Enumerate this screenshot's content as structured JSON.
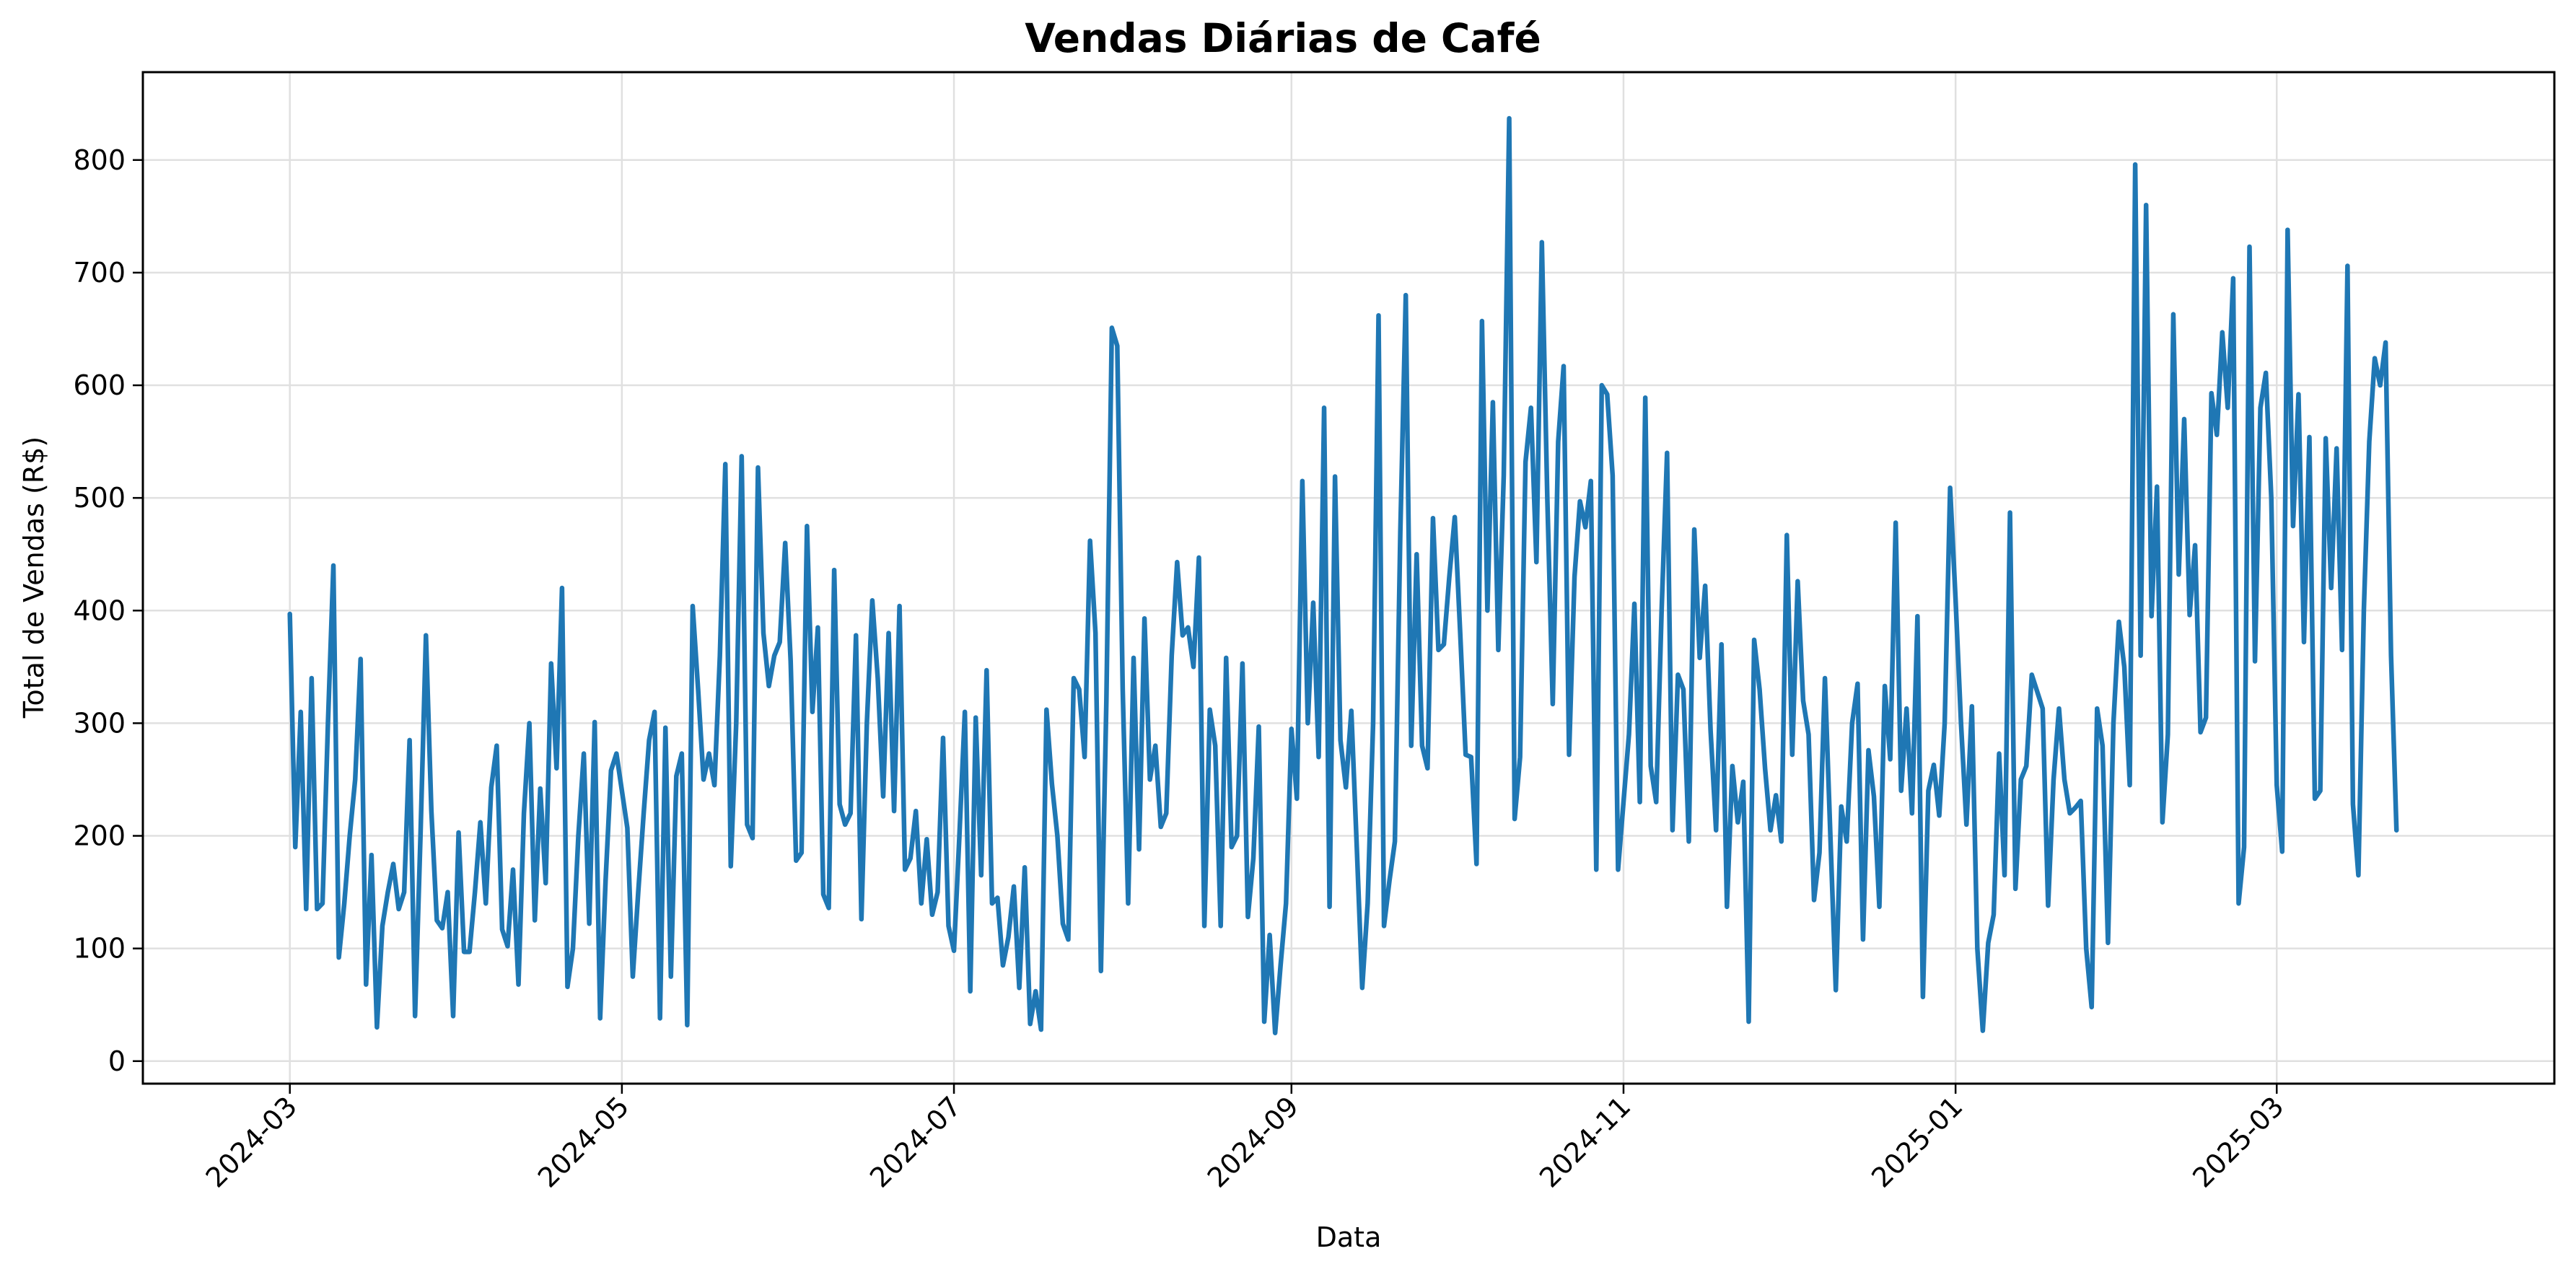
{
  "chart_data": {
    "type": "line",
    "title": "Vendas Diárias de Café",
    "xlabel": "Data",
    "ylabel": "Total de Vendas (R$)",
    "x_start": "2024-03-01",
    "x_end": "2025-03-24",
    "xlim": [
      "2024-02-03",
      "2025-04-21"
    ],
    "ylim": [
      -20,
      878
    ],
    "grid": true,
    "line_color": "#1f77b4",
    "x_ticks": [
      {
        "date": "2024-03-01",
        "label": "2024-03"
      },
      {
        "date": "2024-05-01",
        "label": "2024-05"
      },
      {
        "date": "2024-07-01",
        "label": "2024-07"
      },
      {
        "date": "2024-09-01",
        "label": "2024-09"
      },
      {
        "date": "2024-11-01",
        "label": "2024-11"
      },
      {
        "date": "2025-01-01",
        "label": "2025-01"
      },
      {
        "date": "2025-03-01",
        "label": "2025-03"
      }
    ],
    "y_ticks": [
      0,
      100,
      200,
      300,
      400,
      500,
      600,
      700,
      800
    ],
    "series": [
      {
        "values": [
          397,
          190,
          310,
          135,
          340,
          135,
          140,
          300,
          440,
          92,
          140,
          200,
          250,
          357,
          68,
          183,
          30,
          120,
          150,
          175,
          135,
          150,
          285,
          40,
          200,
          378,
          222,
          125,
          118,
          150,
          40,
          203,
          97,
          97,
          150,
          212,
          140,
          243,
          280,
          117,
          102,
          170,
          68,
          220,
          300,
          125,
          242,
          158,
          353,
          260,
          420,
          66,
          100,
          200,
          273,
          122,
          301,
          38,
          160,
          258,
          273,
          240,
          207,
          75,
          150,
          220,
          285,
          310,
          38,
          296,
          75,
          253,
          273,
          32,
          404,
          330,
          250,
          273,
          245,
          360,
          530,
          173,
          300,
          537,
          210,
          198,
          527,
          380,
          333,
          360,
          372,
          460,
          355,
          178,
          185,
          475,
          310,
          385,
          148,
          136,
          436,
          228,
          210,
          220,
          378,
          126,
          300,
          409,
          340,
          235,
          380,
          222,
          404,
          170,
          180,
          222,
          140,
          197,
          130,
          150,
          287,
          120,
          98,
          200,
          310,
          62,
          305,
          165,
          347,
          140,
          145,
          85,
          110,
          155,
          65,
          172,
          33,
          62,
          28,
          312,
          246,
          200,
          122,
          108,
          340,
          330,
          270,
          462,
          380,
          80,
          320,
          651,
          635,
          330,
          140,
          358,
          188,
          393,
          250,
          280,
          208,
          220,
          360,
          443,
          378,
          385,
          350,
          447,
          120,
          312,
          280,
          120,
          358,
          190,
          200,
          353,
          128,
          180,
          297,
          35,
          112,
          25,
          85,
          140,
          295,
          233,
          515,
          300,
          407,
          270,
          580,
          137,
          519,
          285,
          243,
          311,
          190,
          65,
          140,
          300,
          662,
          120,
          160,
          195,
          470,
          680,
          280,
          450,
          280,
          260,
          482,
          365,
          370,
          430,
          483,
          380,
          272,
          270,
          175,
          657,
          400,
          585,
          365,
          520,
          837,
          215,
          270,
          532,
          580,
          443,
          727,
          500,
          317,
          550,
          617,
          272,
          430,
          497,
          474,
          515,
          170,
          600,
          592,
          520,
          170,
          230,
          290,
          406,
          230,
          589,
          262,
          230,
          400,
          540,
          205,
          343,
          330,
          195,
          472,
          358,
          422,
          293,
          205,
          370,
          137,
          262,
          212,
          248,
          35,
          374,
          330,
          260,
          205,
          236,
          195,
          467,
          272,
          426,
          320,
          290,
          143,
          185,
          340,
          200,
          63,
          226,
          195,
          300,
          335,
          108,
          276,
          235,
          137,
          333,
          268,
          478,
          240,
          313,
          220,
          395,
          57,
          240,
          263,
          218,
          300,
          509,
          410,
          300,
          210,
          315,
          100,
          27,
          105,
          130,
          273,
          165,
          487,
          153,
          250,
          262,
          343,
          328,
          313,
          138,
          250,
          313,
          250,
          220,
          225,
          231,
          100,
          48,
          313,
          280,
          105,
          300,
          390,
          350,
          245,
          796,
          360,
          760,
          395,
          510,
          212,
          290,
          663,
          432,
          570,
          396,
          458,
          292,
          305,
          593,
          556,
          647,
          580,
          695,
          140,
          190,
          723,
          355,
          580,
          611,
          500,
          245,
          186,
          738,
          475,
          592,
          372,
          554,
          233,
          240,
          553,
          420,
          544,
          365,
          706,
          228,
          165,
          400,
          550,
          624,
          600,
          638,
          360,
          205
        ]
      }
    ]
  }
}
